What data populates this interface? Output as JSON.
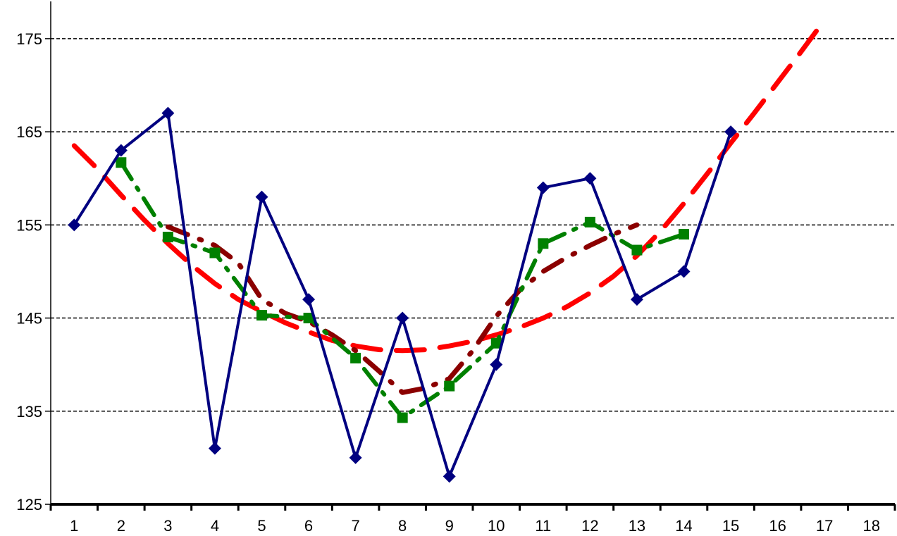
{
  "chart_data": {
    "type": "line",
    "title": "",
    "xlabel": "",
    "ylabel": "",
    "x_categories": [
      "1",
      "2",
      "3",
      "4",
      "5",
      "6",
      "7",
      "8",
      "9",
      "10",
      "11",
      "12",
      "13",
      "14",
      "15",
      "16",
      "17",
      "18"
    ],
    "y_ticks": [
      125,
      135,
      145,
      155,
      165,
      175
    ],
    "y_tick_labels": [
      "125",
      "135",
      "145",
      "155",
      "165",
      "175"
    ],
    "ylim": [
      125,
      179
    ],
    "grid": "horizontal-dashed",
    "legend": "none",
    "series": [
      {
        "style": "solid-diamond",
        "color": "#000080",
        "x": [
          1,
          2,
          3,
          4,
          5,
          6,
          7,
          8,
          9,
          10,
          11,
          12,
          13,
          14,
          15
        ],
        "values": [
          155,
          163,
          167,
          131,
          158,
          147,
          130,
          145,
          128,
          140,
          159,
          160,
          147,
          150,
          165
        ]
      },
      {
        "style": "dash-dot-square",
        "color": "#008000",
        "x": [
          2,
          3,
          4,
          5,
          6,
          7,
          8,
          9,
          10,
          11,
          12,
          13,
          14
        ],
        "values": [
          161.7,
          153.7,
          152.0,
          145.3,
          145.0,
          140.7,
          134.3,
          137.7,
          142.3,
          153.0,
          155.3,
          152.3,
          154.0
        ]
      },
      {
        "style": "dash-dot",
        "color": "#8B0000",
        "x": [
          3.0,
          3.5,
          4.0,
          4.5,
          5.0,
          5.5,
          6.0,
          6.5,
          7.0,
          7.5,
          8.0,
          8.5,
          9.0,
          9.5,
          10.0,
          10.5,
          11.0,
          11.5,
          12.0,
          12.5,
          13.0
        ],
        "values": [
          154.8,
          153.8,
          152.8,
          150.9,
          147.0,
          145.5,
          144.6,
          143.2,
          141.5,
          139.3,
          137.0,
          137.5,
          138.5,
          141.5,
          145.2,
          148.0,
          150.0,
          151.5,
          152.8,
          154.0,
          155.0
        ]
      },
      {
        "style": "long-dash",
        "color": "#FF0000",
        "x": [
          1.0,
          1.5,
          2.0,
          2.5,
          3.0,
          3.5,
          4.0,
          4.5,
          5.0,
          5.5,
          6.0,
          6.5,
          7.0,
          7.5,
          8.0,
          8.5,
          9.0,
          9.5,
          10.0,
          10.5,
          11.0,
          11.5,
          12.0,
          12.5,
          13.0,
          13.5,
          14.0,
          14.5,
          15.0,
          15.5,
          16.0,
          16.5,
          17.0
        ],
        "values": [
          163.5,
          161.0,
          158.2,
          155.5,
          153.0,
          150.7,
          148.7,
          147.0,
          145.7,
          144.5,
          143.5,
          142.6,
          142.0,
          141.6,
          141.5,
          141.6,
          142.0,
          142.5,
          143.2,
          144.0,
          145.0,
          146.2,
          147.7,
          149.5,
          151.7,
          154.3,
          157.3,
          160.5,
          163.8,
          167.0,
          170.3,
          173.6,
          177.0
        ]
      }
    ]
  }
}
